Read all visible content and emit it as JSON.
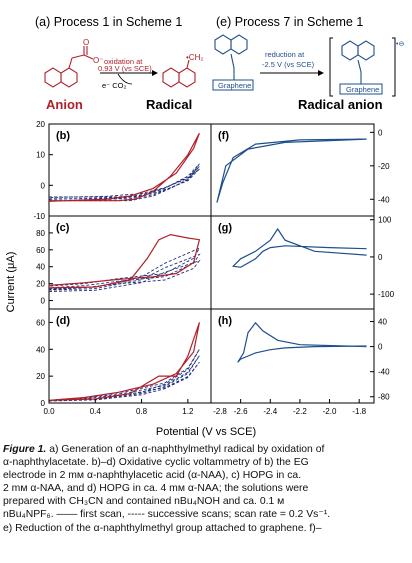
{
  "scheme": {
    "left_title": "(a) Process 1 in Scheme 1",
    "right_title": "(e) Process 7 in Scheme 1",
    "oxidation_line1": "oxidation at",
    "oxidation_line2": "0.93 V (vs SCE)",
    "byproducts": "e⁻  CO₂",
    "radical_group": "•CH₂",
    "anion_label": "Anion",
    "radical_label": "Radical",
    "reduction_line1": "reduction at",
    "reduction_line2": "-2.5 V (vs SCE)",
    "graphene_label": "Graphene",
    "radical_anion_label": "Radical anion",
    "charge_mark": "•⊖"
  },
  "axes": {
    "ylabel": "Current (μA)",
    "xlabel": "Potential (V vs SCE)",
    "left_xticks": [
      "0.0",
      "0.4",
      "0.8",
      "1.2"
    ],
    "right_xticks": [
      "-2.8",
      "-2.6",
      "-2.4",
      "-2.2",
      "-2.0",
      "-1.8"
    ]
  },
  "chart_data": [
    {
      "type": "line",
      "panel": "b",
      "series_styles": [
        "first scan (solid)",
        "successive scans (dashed)"
      ],
      "xlim": [
        0.0,
        1.4
      ],
      "ylim": [
        -10,
        20
      ],
      "yticks": [
        "-10",
        "0",
        "10",
        "20"
      ],
      "first_scan": {
        "x": [
          0.0,
          0.6,
          0.75,
          0.9,
          1.05,
          1.2,
          1.3,
          1.25,
          1.1,
          0.9,
          0.7,
          0.5,
          0.0
        ],
        "y": [
          -5,
          -5,
          -4.5,
          -2,
          3,
          10,
          17,
          12,
          4,
          -1,
          -3.5,
          -4.5,
          -5.2
        ]
      },
      "successive_scans": [
        {
          "x": [
            0.0,
            0.7,
            0.9,
            1.05,
            1.2,
            1.3,
            1.2,
            1.0,
            0.8,
            0.5,
            0.0
          ],
          "y": [
            -5,
            -5,
            -3.5,
            -1,
            2,
            7,
            3,
            -1,
            -3.5,
            -4.7,
            -5.2
          ]
        }
      ]
    },
    {
      "type": "line",
      "panel": "c",
      "series_styles": [
        "first scan (solid)",
        "successive scans (dashed)"
      ],
      "xlim": [
        0.0,
        1.4
      ],
      "ylim": [
        -10,
        100
      ],
      "yticks": [
        "0",
        "20",
        "40",
        "60",
        "80"
      ],
      "first_scan": {
        "x": [
          0.0,
          0.4,
          0.7,
          0.85,
          0.95,
          1.05,
          1.2,
          1.3,
          1.25,
          1.1,
          0.9,
          0.6,
          0.3,
          0.0
        ],
        "y": [
          15,
          16,
          24,
          50,
          72,
          78,
          74,
          72,
          45,
          32,
          28,
          25,
          21,
          18
        ]
      },
      "successive_scans": [
        {
          "x": [
            0.0,
            0.4,
            0.8,
            1.0,
            1.2,
            1.3,
            1.25,
            1.0,
            0.6,
            0.3,
            0.0
          ],
          "y": [
            14,
            16,
            28,
            44,
            56,
            62,
            50,
            32,
            26,
            20,
            17
          ]
        }
      ]
    },
    {
      "type": "line",
      "panel": "d",
      "series_styles": [
        "first scan (solid)",
        "successive scans (dashed)"
      ],
      "xlim": [
        0.0,
        1.4
      ],
      "ylim": [
        0,
        70
      ],
      "yticks": [
        "0",
        "20",
        "40",
        "60"
      ],
      "first_scan": {
        "x": [
          0.0,
          0.4,
          0.7,
          0.85,
          0.95,
          1.1,
          1.2,
          1.3,
          1.25,
          1.1,
          0.9,
          0.6,
          0.3,
          0.0
        ],
        "y": [
          2,
          3,
          7,
          15,
          20,
          20,
          35,
          60,
          38,
          22,
          14,
          8,
          4,
          2
        ]
      },
      "successive_scans": [
        {
          "x": [
            0.0,
            0.4,
            0.8,
            1.0,
            1.2,
            1.3,
            1.2,
            1.0,
            0.7,
            0.3,
            0.0
          ],
          "y": [
            2,
            3,
            8,
            14,
            25,
            40,
            26,
            15,
            9,
            4,
            2
          ]
        }
      ]
    },
    {
      "type": "line",
      "panel": "f",
      "xlim": [
        -2.8,
        -1.7
      ],
      "ylim": [
        -50,
        5
      ],
      "yticks": [
        "0",
        "-20",
        "-40"
      ],
      "scan": {
        "x": [
          -1.75,
          -2.2,
          -2.5,
          -2.65,
          -2.72,
          -2.76,
          -2.7,
          -2.55,
          -2.3,
          -2.0,
          -1.75
        ],
        "y": [
          -4,
          -4.5,
          -7,
          -15,
          -30,
          -42,
          -20,
          -10,
          -6,
          -5,
          -4
        ]
      }
    },
    {
      "type": "line",
      "panel": "g",
      "xlim": [
        -2.8,
        -1.7
      ],
      "ylim": [
        -140,
        110
      ],
      "yticks": [
        "100",
        "0",
        "-100"
      ],
      "scan": {
        "x": [
          -1.75,
          -2.1,
          -2.3,
          -2.35,
          -2.4,
          -2.5,
          -2.6,
          -2.65,
          -2.6,
          -2.5,
          -2.45,
          -2.4,
          -2.3,
          -2.0,
          -1.75
        ],
        "y": [
          5,
          15,
          45,
          75,
          45,
          15,
          -5,
          -25,
          -28,
          -5,
          15,
          25,
          30,
          25,
          22
        ]
      }
    },
    {
      "type": "line",
      "panel": "h",
      "xlim": [
        -2.8,
        -1.7
      ],
      "ylim": [
        -90,
        60
      ],
      "yticks": [
        "40",
        "0",
        "-40",
        "-80"
      ],
      "scan": {
        "x": [
          -1.75,
          -2.2,
          -2.35,
          -2.45,
          -2.5,
          -2.55,
          -2.58,
          -2.62,
          -2.6,
          -2.5,
          -2.4,
          -2.3,
          -2.1,
          -1.75
        ],
        "y": [
          0,
          3,
          10,
          25,
          38,
          22,
          -10,
          -25,
          -20,
          -10,
          -5,
          -2,
          0,
          1
        ]
      }
    }
  ],
  "caption": {
    "label": "Figure 1.",
    "lines": [
      " a) Generation of an α-naphthylmethyl radical by oxidation of",
      "α-naphthylacetate. b)–d) Oxidative cyclic voltammetry of b) the EG",
      "electrode in 2 mм α-naphthylacetic acid (α-NAA), c) HOPG in ca.",
      "2 mм α-NAA, and d) HOPG in ca. 4 mм α-NAA; the solutions were",
      "prepared with CH₃CN and contained nBu₄NOH and ca. 0.1 м",
      "nBu₄NPF₆. —— first scan, ----- successive scans; scan rate = 0.2 Vs⁻¹.",
      "e) Reduction of the α-naphthylmethyl group attached to graphene. f)–"
    ]
  },
  "colors": {
    "first_scan": "#b0202a",
    "successive": "#1c2f7a",
    "right_cv": "#1d4f8c",
    "accent_red": "#b0202a",
    "axis": "#000000"
  }
}
